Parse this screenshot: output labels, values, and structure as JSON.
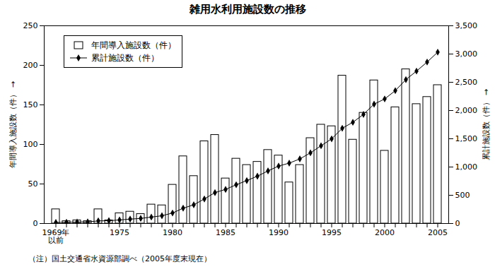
{
  "chart_data": {
    "type": "bar",
    "title": "雑用水利用施設数の推移",
    "note": "（注）国土交通省水資源部調べ（2005年度末現在）",
    "categories": [
      "1969年\n以前",
      null,
      null,
      null,
      null,
      null,
      "1975",
      null,
      null,
      null,
      null,
      "1980",
      null,
      null,
      null,
      null,
      "1985",
      null,
      null,
      null,
      null,
      "1990",
      null,
      null,
      null,
      null,
      "1995",
      null,
      null,
      null,
      null,
      "2000",
      null,
      null,
      null,
      null,
      "2005"
    ],
    "series": [
      {
        "name": "年間導入施設数（件）",
        "type": "bar",
        "color": "#ffffff",
        "values": [
          18,
          3,
          4,
          3,
          18,
          4,
          13,
          15,
          12,
          24,
          23,
          49,
          85,
          60,
          104,
          112,
          57,
          82,
          74,
          78,
          93,
          86,
          52,
          74,
          108,
          125,
          123,
          187,
          106,
          140,
          181,
          92,
          147,
          195,
          151,
          160,
          175
        ]
      },
      {
        "name": "累計施設数（件）",
        "type": "line",
        "axis": "y2",
        "color": "#000000",
        "marker": "diamond",
        "values": [
          18,
          21,
          25,
          28,
          46,
          50,
          63,
          78,
          90,
          114,
          137,
          186,
          271,
          331,
          435,
          547,
          604,
          686,
          760,
          838,
          931,
          1017,
          1069,
          1143,
          1251,
          1376,
          1499,
          1686,
          1792,
          1932,
          2113,
          2205,
          2352,
          2547,
          2698,
          2858,
          3033
        ]
      }
    ],
    "y_label": "年間導入施設数（件）",
    "y2_label": "累計施設数（件）",
    "ylim": [
      0,
      250
    ],
    "yticks": [
      0,
      50,
      100,
      150,
      200,
      250
    ],
    "y2lim": [
      0,
      3500
    ],
    "y2ticks": [
      0,
      500,
      {
        "value": 1000,
        "label": "1,000"
      },
      {
        "value": 1500,
        "label": "1,500"
      },
      {
        "value": 2000,
        "label": "2,000"
      },
      {
        "value": 2500,
        "label": "2,500"
      },
      {
        "value": 3000,
        "label": "3,000"
      },
      {
        "value": 3500,
        "label": "3,500"
      }
    ],
    "legend": "top-left",
    "grid": false
  }
}
